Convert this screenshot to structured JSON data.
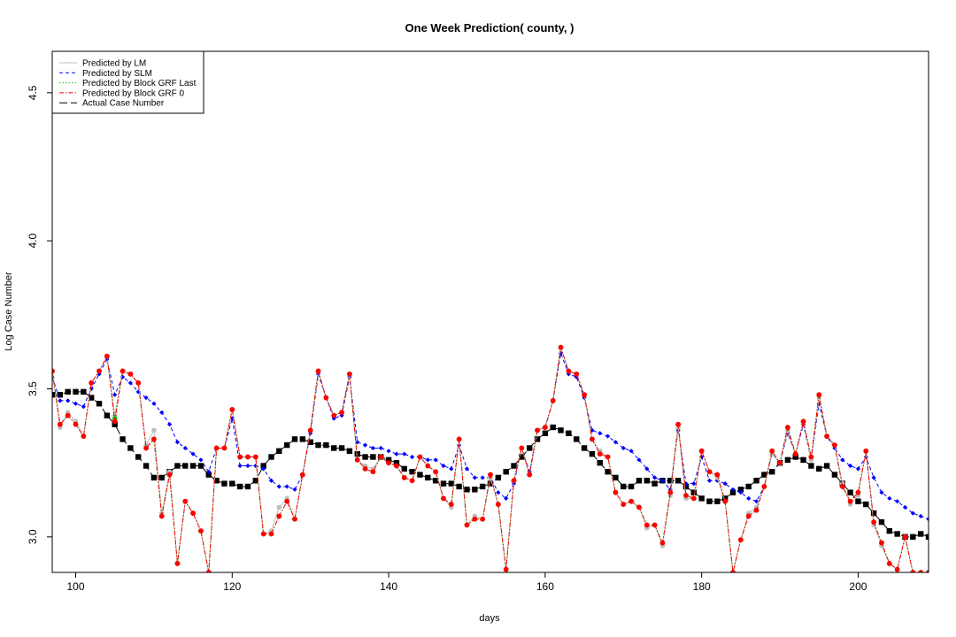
{
  "chart_data": {
    "type": "line",
    "title": "One Week Prediction( county, )",
    "xlabel": "days",
    "ylabel": "Log Case Number",
    "xlim": [
      97,
      209
    ],
    "ylim": [
      2.88,
      4.64
    ],
    "x_ticks": [
      100,
      120,
      140,
      160,
      180,
      200
    ],
    "y_ticks": [
      3.0,
      3.5,
      4.0,
      4.5
    ],
    "y_tick_labels": [
      "3.0",
      "3.5",
      "4.0",
      "4.5"
    ],
    "grid": false,
    "legend_position": "top-left",
    "x": [
      97,
      98,
      99,
      100,
      101,
      102,
      103,
      104,
      105,
      106,
      107,
      108,
      109,
      110,
      111,
      112,
      113,
      114,
      115,
      116,
      117,
      118,
      119,
      120,
      121,
      122,
      123,
      124,
      125,
      126,
      127,
      128,
      129,
      130,
      131,
      132,
      133,
      134,
      135,
      136,
      137,
      138,
      139,
      140,
      141,
      142,
      143,
      144,
      145,
      146,
      147,
      148,
      149,
      150,
      151,
      152,
      153,
      154,
      155,
      156,
      157,
      158,
      159,
      160,
      161,
      162,
      163,
      164,
      165,
      166,
      167,
      168,
      169,
      170,
      171,
      172,
      173,
      174,
      175,
      176,
      177,
      178,
      179,
      180,
      181,
      182,
      183,
      184,
      185,
      186,
      187,
      188,
      189,
      190,
      191,
      192,
      193,
      194,
      195,
      196,
      197,
      198,
      199,
      200,
      201,
      202,
      203,
      204,
      205,
      206,
      207,
      208,
      209
    ],
    "series": [
      {
        "name": "Predicted by LM",
        "color": "#bebebe",
        "line_style": "solid",
        "marker": "circle",
        "values": [
          3.56,
          3.37,
          3.42,
          3.39,
          3.34,
          3.52,
          3.56,
          3.61,
          3.41,
          3.56,
          3.55,
          3.52,
          3.31,
          3.36,
          3.08,
          3.22,
          2.91,
          3.12,
          3.08,
          3.02,
          2.88,
          3.3,
          3.3,
          3.43,
          3.27,
          3.27,
          3.27,
          3.01,
          3.02,
          3.1,
          3.13,
          3.06,
          3.21,
          3.36,
          3.56,
          3.47,
          3.41,
          3.42,
          3.55,
          3.26,
          3.24,
          3.23,
          3.27,
          3.25,
          3.24,
          3.2,
          3.19,
          3.27,
          3.24,
          3.22,
          3.13,
          3.1,
          3.33,
          3.04,
          3.07,
          3.06,
          3.2,
          3.11,
          2.89,
          3.19,
          3.3,
          3.21,
          3.36,
          3.37,
          3.46,
          3.64,
          3.56,
          3.55,
          3.48,
          3.33,
          3.29,
          3.27,
          3.15,
          3.11,
          3.12,
          3.1,
          3.03,
          3.04,
          2.97,
          3.14,
          3.37,
          3.13,
          3.13,
          3.29,
          3.22,
          3.2,
          3.12,
          2.88,
          2.99,
          3.08,
          3.1,
          3.17,
          3.28,
          3.25,
          3.36,
          3.28,
          3.39,
          3.26,
          3.47,
          3.34,
          3.31,
          3.18,
          3.11,
          3.14,
          3.29,
          3.04,
          2.97,
          2.91,
          2.89,
          3.0,
          2.88,
          2.88,
          2.88
        ]
      },
      {
        "name": "Predicted by SLM",
        "color": "#0000ff",
        "line_style": "dashed",
        "marker": "diamond",
        "values": [
          3.54,
          3.46,
          3.46,
          3.45,
          3.44,
          3.5,
          3.55,
          3.6,
          3.48,
          3.54,
          3.52,
          3.49,
          3.47,
          3.45,
          3.42,
          3.38,
          3.32,
          3.3,
          3.28,
          3.26,
          3.22,
          3.3,
          3.3,
          3.4,
          3.24,
          3.24,
          3.24,
          3.23,
          3.19,
          3.17,
          3.17,
          3.16,
          3.21,
          3.35,
          3.55,
          3.47,
          3.4,
          3.41,
          3.54,
          3.32,
          3.31,
          3.3,
          3.3,
          3.29,
          3.28,
          3.28,
          3.27,
          3.27,
          3.26,
          3.26,
          3.24,
          3.23,
          3.31,
          3.23,
          3.2,
          3.2,
          3.2,
          3.15,
          3.13,
          3.18,
          3.3,
          3.22,
          3.36,
          3.37,
          3.46,
          3.62,
          3.55,
          3.54,
          3.47,
          3.36,
          3.35,
          3.34,
          3.32,
          3.3,
          3.29,
          3.26,
          3.23,
          3.2,
          3.19,
          3.16,
          3.36,
          3.18,
          3.18,
          3.27,
          3.19,
          3.19,
          3.18,
          3.16,
          3.15,
          3.13,
          3.12,
          3.17,
          3.28,
          3.25,
          3.35,
          3.28,
          3.38,
          3.26,
          3.45,
          3.34,
          3.3,
          3.26,
          3.24,
          3.23,
          3.27,
          3.2,
          3.15,
          3.13,
          3.12,
          3.1,
          3.08,
          3.07,
          3.06
        ]
      },
      {
        "name": "Predicted by Block GRF Last",
        "color": "#00cd00",
        "line_style": "dotted",
        "marker": "circle",
        "values": [
          3.56,
          3.38,
          3.41,
          3.38,
          3.34,
          3.52,
          3.56,
          3.61,
          3.4,
          3.56,
          3.55,
          3.52,
          3.3,
          3.33,
          3.07,
          3.21,
          2.91,
          3.12,
          3.08,
          3.02,
          2.88,
          3.3,
          3.3,
          3.43,
          3.27,
          3.27,
          3.27,
          3.01,
          3.01,
          3.07,
          3.12,
          3.06,
          3.21,
          3.36,
          3.56,
          3.47,
          3.41,
          3.42,
          3.55,
          3.26,
          3.23,
          3.22,
          3.27,
          3.25,
          3.24,
          3.2,
          3.19,
          3.27,
          3.24,
          3.22,
          3.13,
          3.11,
          3.33,
          3.04,
          3.06,
          3.06,
          3.21,
          3.11,
          2.89,
          3.19,
          3.3,
          3.21,
          3.36,
          3.37,
          3.46,
          3.64,
          3.56,
          3.55,
          3.48,
          3.33,
          3.28,
          3.27,
          3.15,
          3.11,
          3.12,
          3.1,
          3.04,
          3.04,
          2.98,
          3.15,
          3.38,
          3.14,
          3.13,
          3.29,
          3.22,
          3.21,
          3.12,
          2.88,
          2.99,
          3.07,
          3.09,
          3.17,
          3.29,
          3.25,
          3.37,
          3.28,
          3.39,
          3.27,
          3.48,
          3.34,
          3.31,
          3.17,
          3.12,
          3.15,
          3.29,
          3.05,
          2.98,
          2.91,
          2.89,
          3.0,
          2.88,
          2.88,
          2.88
        ]
      },
      {
        "name": "Predicted by Block GRF 0",
        "color": "#ff0000",
        "line_style": "dashdot",
        "marker": "circle",
        "values": [
          3.56,
          3.38,
          3.41,
          3.38,
          3.34,
          3.52,
          3.56,
          3.61,
          3.39,
          3.56,
          3.55,
          3.52,
          3.3,
          3.33,
          3.07,
          3.21,
          2.91,
          3.12,
          3.08,
          3.02,
          2.88,
          3.3,
          3.3,
          3.43,
          3.27,
          3.27,
          3.27,
          3.01,
          3.01,
          3.07,
          3.12,
          3.06,
          3.21,
          3.36,
          3.56,
          3.47,
          3.41,
          3.42,
          3.55,
          3.26,
          3.23,
          3.22,
          3.27,
          3.25,
          3.24,
          3.2,
          3.19,
          3.27,
          3.24,
          3.22,
          3.13,
          3.11,
          3.33,
          3.04,
          3.06,
          3.06,
          3.21,
          3.11,
          2.89,
          3.19,
          3.3,
          3.21,
          3.36,
          3.37,
          3.46,
          3.64,
          3.56,
          3.55,
          3.48,
          3.33,
          3.28,
          3.27,
          3.15,
          3.11,
          3.12,
          3.1,
          3.04,
          3.04,
          2.98,
          3.15,
          3.38,
          3.14,
          3.13,
          3.29,
          3.22,
          3.21,
          3.12,
          2.88,
          2.99,
          3.07,
          3.09,
          3.17,
          3.29,
          3.25,
          3.37,
          3.28,
          3.39,
          3.27,
          3.48,
          3.34,
          3.31,
          3.17,
          3.12,
          3.15,
          3.29,
          3.05,
          2.98,
          2.91,
          2.89,
          3.0,
          2.88,
          2.88,
          2.88
        ]
      },
      {
        "name": "Actual Case Number",
        "color": "#000000",
        "line_style": "longdash",
        "marker": "square",
        "values": [
          3.48,
          3.48,
          3.49,
          3.49,
          3.49,
          3.47,
          3.45,
          3.41,
          3.38,
          3.33,
          3.3,
          3.27,
          3.24,
          3.2,
          3.2,
          3.22,
          3.24,
          3.24,
          3.24,
          3.24,
          3.21,
          3.19,
          3.18,
          3.18,
          3.17,
          3.17,
          3.19,
          3.24,
          3.27,
          3.29,
          3.31,
          3.33,
          3.33,
          3.32,
          3.31,
          3.31,
          3.3,
          3.3,
          3.29,
          3.28,
          3.27,
          3.27,
          3.27,
          3.26,
          3.25,
          3.23,
          3.22,
          3.21,
          3.2,
          3.19,
          3.18,
          3.18,
          3.17,
          3.16,
          3.16,
          3.17,
          3.18,
          3.2,
          3.22,
          3.24,
          3.27,
          3.3,
          3.33,
          3.35,
          3.37,
          3.36,
          3.35,
          3.33,
          3.3,
          3.28,
          3.25,
          3.22,
          3.2,
          3.17,
          3.17,
          3.19,
          3.19,
          3.18,
          3.19,
          3.19,
          3.19,
          3.17,
          3.15,
          3.13,
          3.12,
          3.12,
          3.13,
          3.15,
          3.16,
          3.17,
          3.19,
          3.21,
          3.22,
          3.25,
          3.26,
          3.27,
          3.26,
          3.24,
          3.23,
          3.24,
          3.21,
          3.18,
          3.15,
          3.12,
          3.11,
          3.08,
          3.05,
          3.02,
          3.01,
          3.0,
          3.0,
          3.01,
          3.0
        ]
      }
    ]
  }
}
